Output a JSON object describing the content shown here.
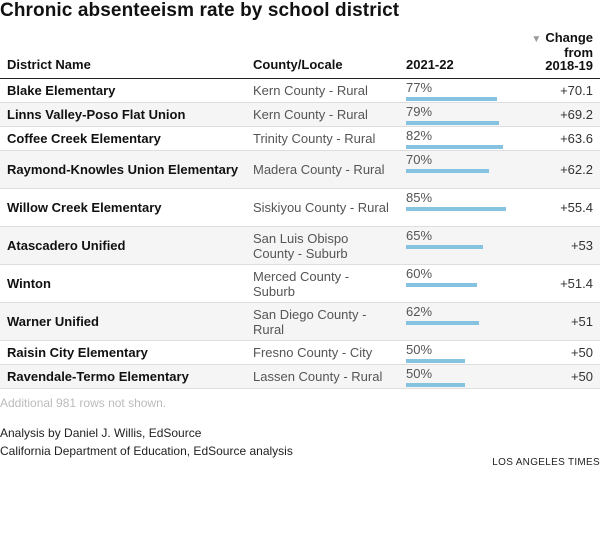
{
  "title": "Chronic absenteeism rate by school district",
  "chart_data": {
    "type": "table",
    "columns": [
      "District Name",
      "County/Locale",
      "2021-22",
      "Change from 2018-19"
    ],
    "headers": {
      "name": "District Name",
      "county": "County/Locale",
      "year": "2021-22",
      "change_lines": [
        "Change",
        "from",
        "2018-19"
      ],
      "sort_icon": "sort-descending-icon"
    },
    "bar_color": "#86c3e0",
    "bar_max": 100,
    "rows": [
      {
        "name": "Blake Elementary",
        "county": "Kern County - Rural",
        "rate": 77,
        "rate_label": "77%",
        "change": "+70.1"
      },
      {
        "name": "Linns Valley-Poso Flat Union",
        "county": "Kern County - Rural",
        "rate": 79,
        "rate_label": "79%",
        "change": "+69.2"
      },
      {
        "name": "Coffee Creek Elementary",
        "county": "Trinity County - Rural",
        "rate": 82,
        "rate_label": "82%",
        "change": "+63.6"
      },
      {
        "name": "Raymond-Knowles Union Elementary",
        "county": "Madera County - Rural",
        "rate": 70,
        "rate_label": "70%",
        "change": "+62.2"
      },
      {
        "name": "Willow Creek Elementary",
        "county": "Siskiyou County - Rural",
        "rate": 85,
        "rate_label": "85%",
        "change": "+55.4"
      },
      {
        "name": "Atascadero Unified",
        "county": "San Luis Obispo County - Suburb",
        "rate": 65,
        "rate_label": "65%",
        "change": "+53"
      },
      {
        "name": "Winton",
        "county": "Merced County - Suburb",
        "rate": 60,
        "rate_label": "60%",
        "change": "+51.4"
      },
      {
        "name": "Warner Unified",
        "county": "San Diego County - Rural",
        "rate": 62,
        "rate_label": "62%",
        "change": "+51"
      },
      {
        "name": "Raisin City Elementary",
        "county": "Fresno County - City",
        "rate": 50,
        "rate_label": "50%",
        "change": "+50"
      },
      {
        "name": "Ravendale-Termo Elementary",
        "county": "Lassen County - Rural",
        "rate": 50,
        "rate_label": "50%",
        "change": "+50"
      }
    ]
  },
  "footer": {
    "note": "Additional 981 rows not shown.",
    "credit_1": "Analysis by Daniel J. Willis, EdSource",
    "credit_2": "California Department of Education, EdSource analysis",
    "brand": "LOS ANGELES TIMES"
  }
}
